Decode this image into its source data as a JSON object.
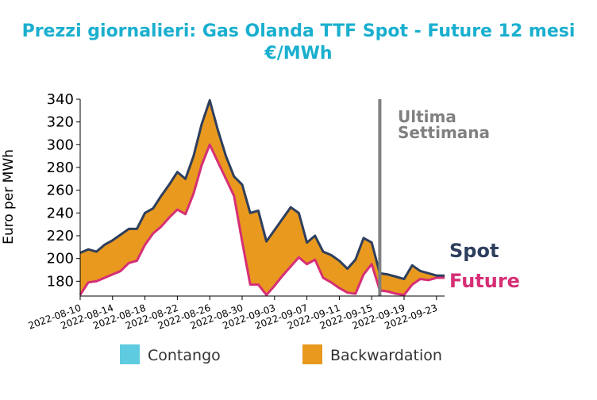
{
  "chart_data": {
    "type": "area",
    "title": "Prezzi giornalieri: Gas Olanda TTF Spot - Future 12 mesi",
    "subtitle": "€/MWh",
    "ylabel": "Euro per MWh",
    "xlabel": "",
    "ylim": [
      167,
      340
    ],
    "yticks": [
      180,
      200,
      220,
      240,
      260,
      280,
      300,
      320,
      340
    ],
    "x_tick_labels": [
      "2022-08-10",
      "2022-08-14",
      "2022-08-18",
      "2022-08-22",
      "2022-08-26",
      "2022-08-30",
      "2022-09-03",
      "2022-09-07",
      "2022-09-11",
      "2022-09-15",
      "2022-09-19",
      "2022-09-23"
    ],
    "x": [
      "2022-08-10",
      "2022-08-11",
      "2022-08-12",
      "2022-08-13",
      "2022-08-14",
      "2022-08-15",
      "2022-08-16",
      "2022-08-17",
      "2022-08-18",
      "2022-08-19",
      "2022-08-20",
      "2022-08-21",
      "2022-08-22",
      "2022-08-23",
      "2022-08-24",
      "2022-08-25",
      "2022-08-26",
      "2022-08-27",
      "2022-08-28",
      "2022-08-29",
      "2022-08-30",
      "2022-08-31",
      "2022-09-01",
      "2022-09-02",
      "2022-09-03",
      "2022-09-04",
      "2022-09-05",
      "2022-09-06",
      "2022-09-07",
      "2022-09-08",
      "2022-09-09",
      "2022-09-10",
      "2022-09-11",
      "2022-09-12",
      "2022-09-13",
      "2022-09-14",
      "2022-09-15",
      "2022-09-16",
      "2022-09-17",
      "2022-09-18",
      "2022-09-19",
      "2022-09-20",
      "2022-09-21",
      "2022-09-22",
      "2022-09-23",
      "2022-09-24"
    ],
    "series": [
      {
        "name": "Spot",
        "color": "#2e3f5e",
        "values": [
          205,
          208,
          206,
          212,
          216,
          221,
          226,
          226,
          240,
          244,
          255,
          265,
          276,
          270,
          290,
          318,
          339,
          313,
          290,
          272,
          265,
          240,
          242,
          215,
          225,
          235,
          245,
          240,
          214,
          220,
          206,
          203,
          198,
          191,
          199,
          218,
          214,
          187,
          186,
          184,
          182,
          194,
          189,
          187,
          185,
          185
        ]
      },
      {
        "name": "Future",
        "color": "#d62f76",
        "values": [
          168,
          179,
          180,
          183,
          186,
          189,
          196,
          198,
          212,
          222,
          228,
          236,
          243,
          239,
          257,
          282,
          300,
          285,
          270,
          255,
          215,
          177,
          177,
          168,
          176,
          185,
          193,
          201,
          195,
          199,
          183,
          179,
          174,
          170,
          169,
          186,
          195,
          172,
          171,
          169,
          168,
          177,
          182,
          181,
          183,
          183
        ]
      }
    ],
    "fill_colors": {
      "contango": "#5ecbe0",
      "backwardation": "#e8991e"
    },
    "legend": [
      {
        "label": "Contango",
        "color": "#5ecbe0"
      },
      {
        "label": "Backwardation",
        "color": "#e8991e"
      }
    ],
    "legend_position": "bottom",
    "vline": {
      "x": "2022-09-16",
      "color": "#808080",
      "label_lines": [
        "Ultima",
        "Settimana"
      ]
    },
    "end_labels": {
      "spot": "Spot",
      "future": "Future"
    },
    "grid": false
  }
}
